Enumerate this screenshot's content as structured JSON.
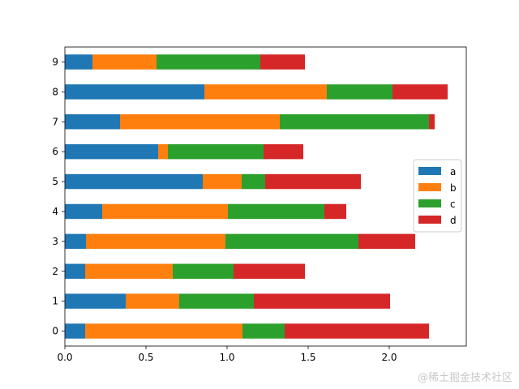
{
  "chart_data": {
    "type": "bar",
    "orientation": "horizontal",
    "stacked": true,
    "categories": [
      "0",
      "1",
      "2",
      "3",
      "4",
      "5",
      "6",
      "7",
      "8",
      "9"
    ],
    "series": [
      {
        "name": "a",
        "color": "#1f77b4",
        "values": [
          0.125,
          0.375,
          0.125,
          0.13,
          0.23,
          0.85,
          0.575,
          0.34,
          0.86,
          0.17
        ]
      },
      {
        "name": "b",
        "color": "#ff7f0e",
        "values": [
          0.97,
          0.33,
          0.54,
          0.86,
          0.775,
          0.24,
          0.06,
          0.985,
          0.755,
          0.395
        ]
      },
      {
        "name": "c",
        "color": "#2ca02c",
        "values": [
          0.26,
          0.46,
          0.375,
          0.82,
          0.595,
          0.145,
          0.59,
          0.92,
          0.405,
          0.64
        ]
      },
      {
        "name": "d",
        "color": "#d62728",
        "values": [
          0.89,
          0.84,
          0.44,
          0.35,
          0.135,
          0.59,
          0.245,
          0.035,
          0.34,
          0.275
        ]
      }
    ],
    "xticks": [
      "0.0",
      "0.5",
      "1.0",
      "1.5",
      "2.0"
    ],
    "xlim": [
      0,
      2.475
    ],
    "grid": false,
    "legend": "center-right",
    "title": "",
    "xlabel": "",
    "ylabel": ""
  },
  "watermark": "@稀土掘金技术社区"
}
